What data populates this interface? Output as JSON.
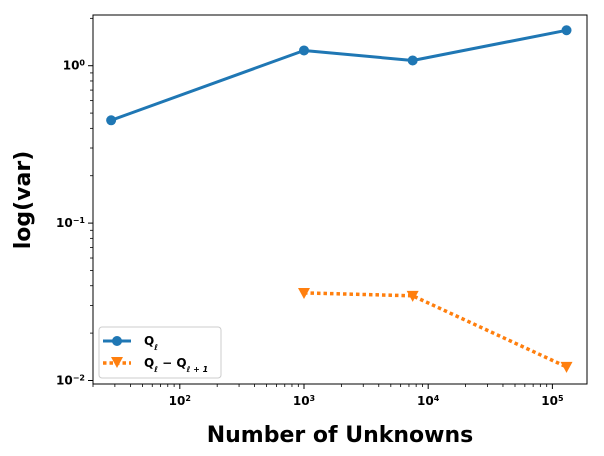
{
  "chart_data": {
    "type": "line",
    "title": "",
    "xlabel": "Number of Unknowns",
    "ylabel": "log(var)",
    "xscale": "log",
    "yscale": "log",
    "xlim": [
      20,
      190000
    ],
    "ylim": [
      0.0095,
      2.1
    ],
    "grid": false,
    "legend_position": "lower-left",
    "x_ticks": [
      {
        "value": 100,
        "base": "10",
        "exp": "2"
      },
      {
        "value": 1000,
        "base": "10",
        "exp": "3"
      },
      {
        "value": 10000,
        "base": "10",
        "exp": "4"
      },
      {
        "value": 100000,
        "base": "10",
        "exp": "5"
      }
    ],
    "y_ticks": [
      {
        "value": 0.01,
        "base": "10",
        "exp": "−2"
      },
      {
        "value": 0.1,
        "base": "10",
        "exp": "−1"
      },
      {
        "value": 1,
        "base": "10",
        "exp": "0"
      }
    ],
    "series": [
      {
        "name": "Q_ℓ",
        "label_main": "Q",
        "label_sub": "ℓ",
        "color": "#1f77b4",
        "line_style": "solid",
        "marker": "circle",
        "x": [
          28,
          1000,
          7500,
          130000
        ],
        "y": [
          0.45,
          1.25,
          1.08,
          1.68
        ]
      },
      {
        "name": "Q_ℓ − Q_ℓ+1",
        "label_main": "Q",
        "label_sub": "ℓ",
        "label_mid": " − Q",
        "label_sub2": "ℓ + 1",
        "color": "#ff7f0e",
        "line_style": "dotted",
        "marker": "triangle-down",
        "x": [
          1000,
          7500,
          130000
        ],
        "y": [
          0.036,
          0.0345,
          0.0122
        ]
      }
    ]
  }
}
